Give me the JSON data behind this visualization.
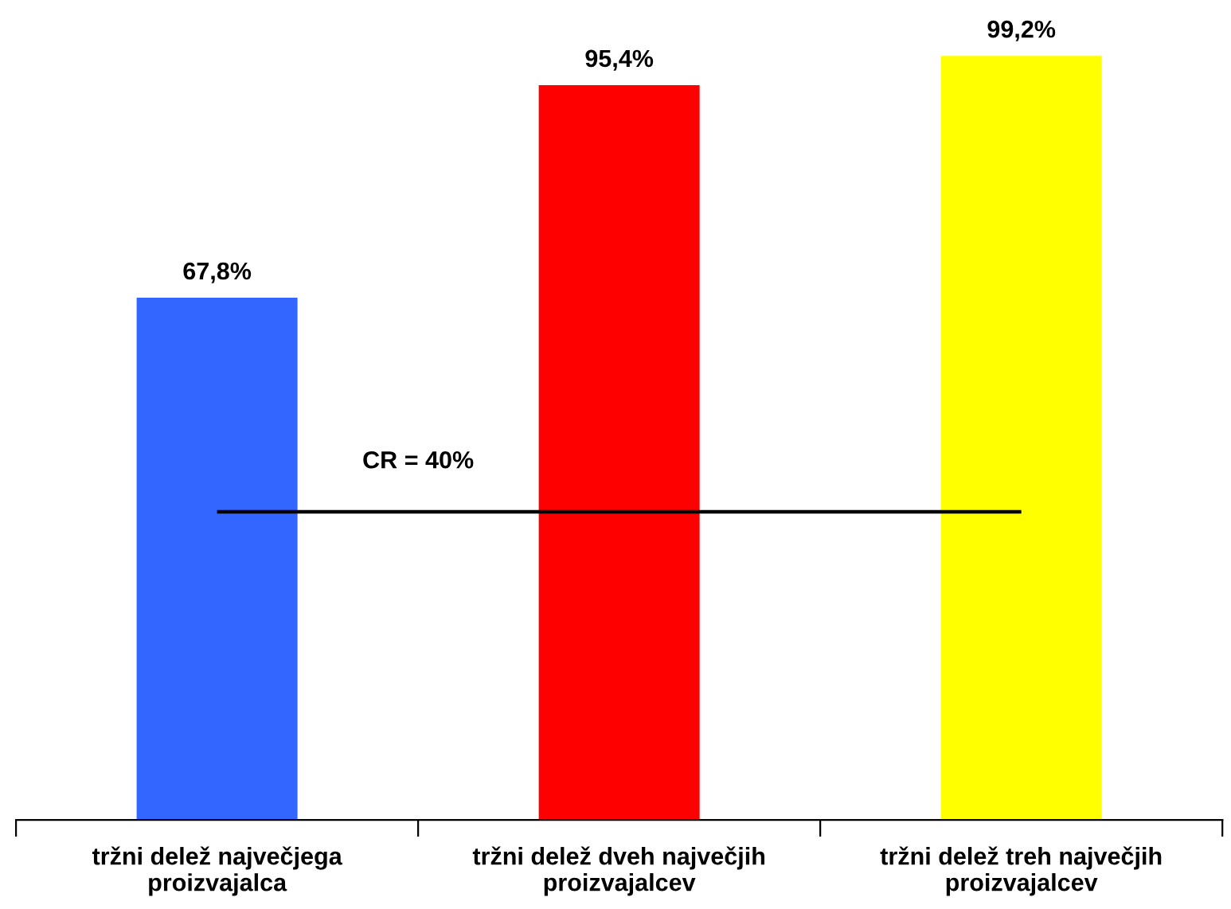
{
  "chart_data": {
    "type": "bar",
    "categories": [
      "tržni delež največjega\nproizvajalca",
      "tržni delež dveh največjih\nproizvajalcev",
      "tržni delež treh največjih\nproizvajalcev"
    ],
    "values": [
      67.8,
      95.4,
      99.2
    ],
    "colors": [
      "#3366ff",
      "#ff0000",
      "#ffff00"
    ],
    "value_labels": [
      "67,8%",
      "95,4%",
      "99,2%"
    ],
    "ref_lines": [
      {
        "axis": "y",
        "value": 40,
        "label": "CR = 40%",
        "color": "#000000"
      }
    ],
    "grid": false,
    "legend": false,
    "tick_labels": "x"
  }
}
